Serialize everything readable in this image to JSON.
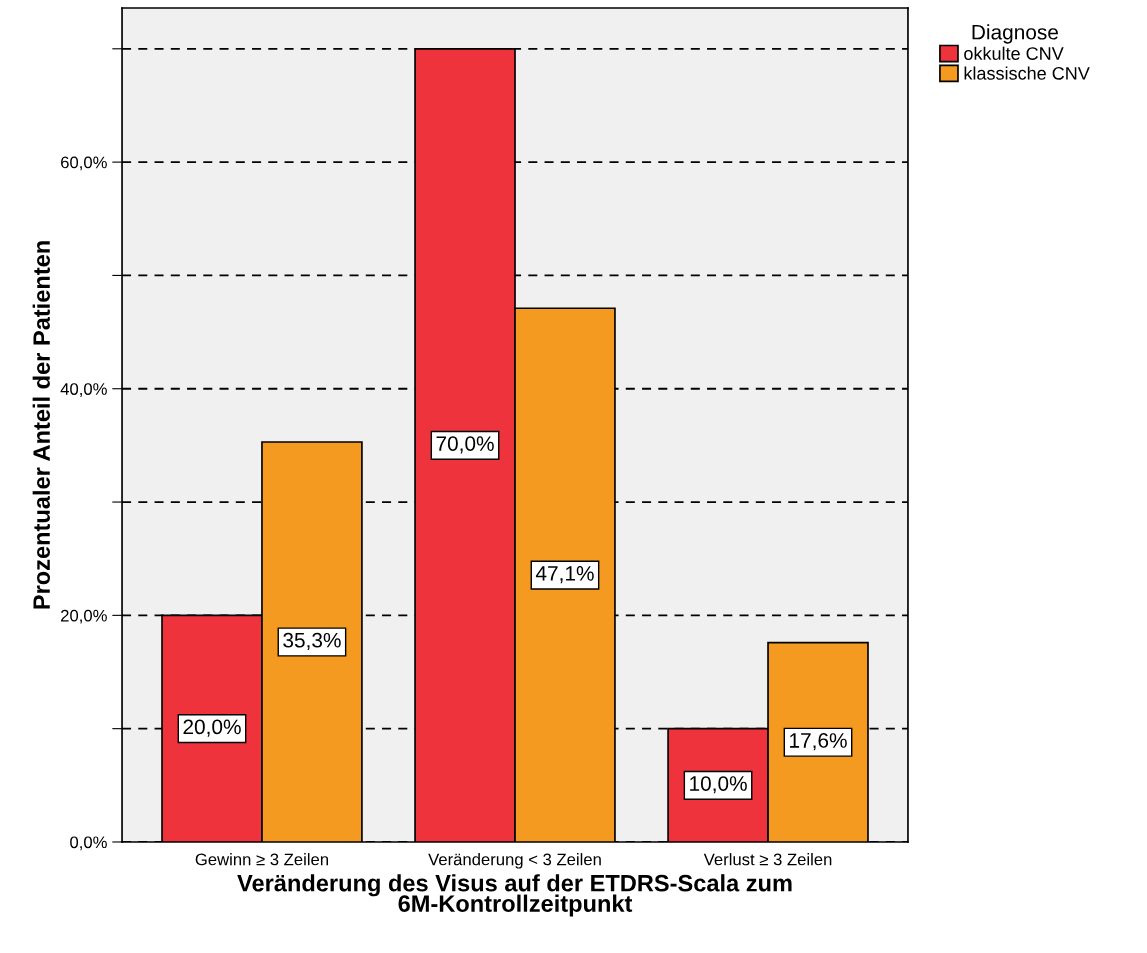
{
  "chart_data": {
    "type": "bar",
    "xlabel": "Veränderung des Visus auf der ETDRS-Scala zum\n6M-Kontrollzeitpunkt",
    "ylabel": "Prozentualer Anteil der Patienten",
    "legend_title": "Diagnose",
    "categories": [
      "Gewinn ≥ 3 Zeilen",
      "Veränderung < 3 Zeilen",
      "Verlust ≥ 3 Zeilen"
    ],
    "series": [
      {
        "name": "okkulte CNV",
        "color": "#ef333c",
        "values": [
          20.0,
          70.0,
          10.0
        ],
        "value_labels": [
          "20,0%",
          "70,0%",
          "10,0%"
        ]
      },
      {
        "name": "klassische CNV",
        "color": "#f59a20",
        "values": [
          35.3,
          47.1,
          17.6
        ],
        "value_labels": [
          "35,3%",
          "47,1%",
          "17,6%"
        ]
      }
    ],
    "ylim": [
      0,
      73.6
    ],
    "yticks": [
      {
        "value": 0,
        "label": "0,0%"
      },
      {
        "value": 10,
        "label": null
      },
      {
        "value": 20,
        "label": "20,0%"
      },
      {
        "value": 30,
        "label": null
      },
      {
        "value": 40,
        "label": "40,0%"
      },
      {
        "value": 50,
        "label": null
      },
      {
        "value": 60,
        "label": "60,0%"
      },
      {
        "value": 70,
        "label": null
      }
    ],
    "grid": "y",
    "legend": "top right"
  }
}
